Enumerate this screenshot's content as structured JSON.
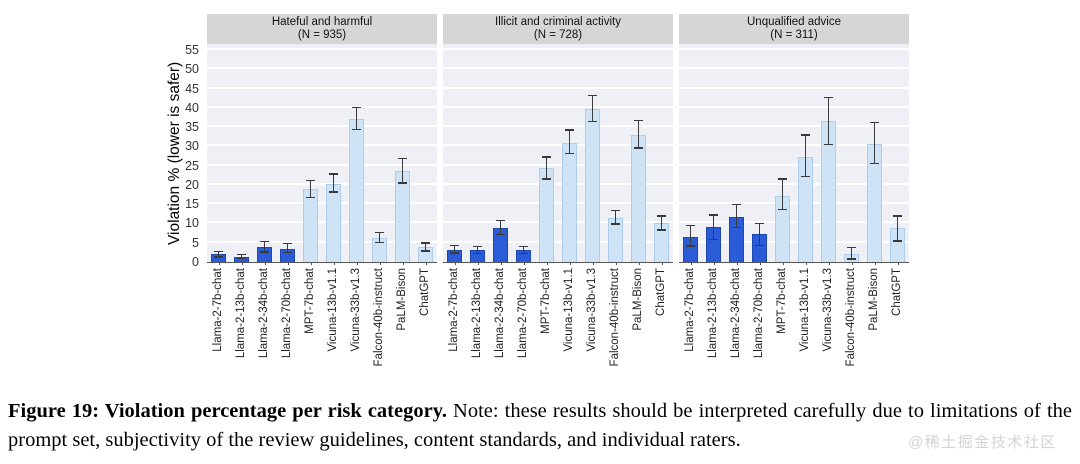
{
  "figure": {
    "caption_bold": "Figure 19: Violation percentage per risk category.",
    "caption_rest": "Note: these results should be interpreted carefully due to limitations of the prompt set, subjectivity of the review guidelines, content standards, and individual raters."
  },
  "watermark": {
    "text": "@稀土掘金技术社区"
  },
  "colors": {
    "llama_bar": "#2b5cd8",
    "llama_bar_border": "#1f47b0",
    "other_bar": "#cfe3f7",
    "other_bar_border": "#aecdea",
    "panel_bg": "#eef0f5",
    "gridline": "#ffffff",
    "header_bg": "#d6d6d6",
    "error_bar": "#3a3a3a",
    "axis_line": "#555555"
  },
  "chart_data": {
    "type": "bar",
    "title": "",
    "xlabel": "",
    "ylabel": "Violation % (lower is safer)",
    "ylim": [
      0,
      55
    ],
    "ytick_step": 5,
    "grid": "horizontal white gridlines every 5 on light panel background",
    "legend": "none (color encodes model family: Llama-2 dark blue, others light blue)",
    "categories": [
      "Llama-2-7b-chat",
      "Llama-2-13b-chat",
      "Llama-2-34b-chat",
      "Llama-2-70b-chat",
      "MPT-7b-chat",
      "Vicuna-13b-v1.1",
      "Vicuna-33b-v1.3",
      "Falcon-40b-instruct",
      "PaLM-Bison",
      "ChatGPT"
    ],
    "color_groups": {
      "dark_blue_models": [
        "Llama-2-7b-chat",
        "Llama-2-13b-chat",
        "Llama-2-34b-chat",
        "Llama-2-70b-chat"
      ],
      "light_blue_models": [
        "MPT-7b-chat",
        "Vicuna-13b-v1.1",
        "Vicuna-33b-v1.3",
        "Falcon-40b-instruct",
        "PaLM-Bison",
        "ChatGPT"
      ]
    },
    "panels": [
      {
        "title": "Hateful and harmful",
        "n_label": "(N = 935)",
        "values": [
          2.0,
          1.4,
          3.9,
          3.4,
          19.0,
          20.3,
          37.0,
          6.2,
          23.6,
          3.8
        ],
        "errors": [
          [
            1.1,
            2.9
          ],
          [
            0.8,
            2.1
          ],
          [
            2.4,
            5.5
          ],
          [
            2.3,
            4.9
          ],
          [
            16.5,
            21.4
          ],
          [
            18.0,
            23.0
          ],
          [
            34.3,
            40.3
          ],
          [
            4.9,
            7.9
          ],
          [
            20.3,
            27.0
          ],
          [
            2.7,
            5.1
          ]
        ]
      },
      {
        "title": "Illicit and criminal activity",
        "n_label": "(N = 728)",
        "values": [
          3.2,
          3.0,
          8.9,
          3.0,
          24.3,
          31.0,
          39.7,
          11.5,
          33.0,
          10.0
        ],
        "errors": [
          [
            2.2,
            4.5
          ],
          [
            2.0,
            4.2
          ],
          [
            7.0,
            11.0
          ],
          [
            2.0,
            4.2
          ],
          [
            21.4,
            27.4
          ],
          [
            28.0,
            34.4
          ],
          [
            36.2,
            43.3
          ],
          [
            9.7,
            13.5
          ],
          [
            29.4,
            36.8
          ],
          [
            8.1,
            12.1
          ]
        ]
      },
      {
        "title": "Unqualified advice",
        "n_label": "(N = 311)",
        "values": [
          6.6,
          9.0,
          11.8,
          7.2,
          17.1,
          27.3,
          36.7,
          2.1,
          30.6,
          8.7
        ],
        "errors": [
          [
            4.0,
            9.7
          ],
          [
            5.6,
            12.4
          ],
          [
            8.7,
            15.1
          ],
          [
            4.2,
            10.1
          ],
          [
            13.4,
            21.7
          ],
          [
            22.0,
            33.1
          ],
          [
            30.3,
            42.9
          ],
          [
            0.6,
            3.9
          ],
          [
            25.3,
            36.4
          ],
          [
            5.3,
            12.1
          ]
        ]
      }
    ]
  }
}
